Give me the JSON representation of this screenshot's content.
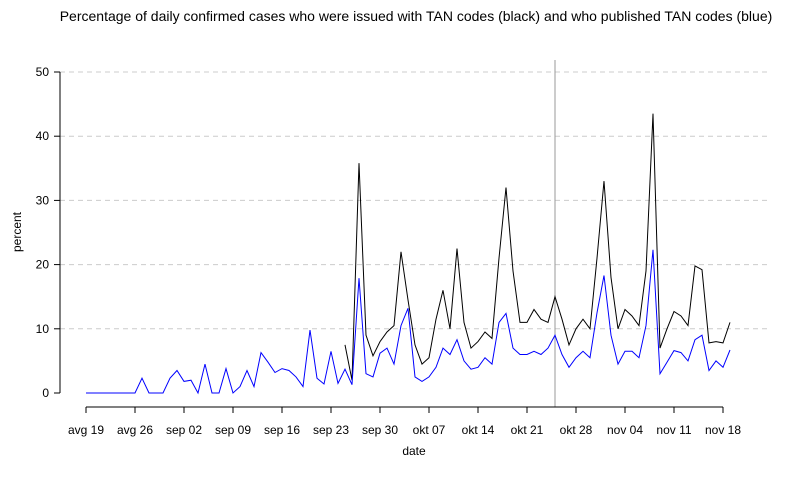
{
  "chart_data": {
    "type": "line",
    "title": "Percentage of daily confirmed cases who were issued with TAN codes (black) and who published TAN codes (blue)",
    "xlabel": "date",
    "ylabel": "percent",
    "ylim": [
      0,
      50
    ],
    "yticks": [
      0,
      10,
      20,
      30,
      40,
      50
    ],
    "xticks": [
      {
        "label": "avg 19",
        "day": 0
      },
      {
        "label": "avg 26",
        "day": 7
      },
      {
        "label": "sep 02",
        "day": 14
      },
      {
        "label": "sep 09",
        "day": 21
      },
      {
        "label": "sep 16",
        "day": 28
      },
      {
        "label": "sep 23",
        "day": 35
      },
      {
        "label": "sep 30",
        "day": 42
      },
      {
        "label": "okt 07",
        "day": 49
      },
      {
        "label": "okt 14",
        "day": 56
      },
      {
        "label": "okt 21",
        "day": 63
      },
      {
        "label": "okt 28",
        "day": 70
      },
      {
        "label": "nov 04",
        "day": 77
      },
      {
        "label": "nov 11",
        "day": 84
      },
      {
        "label": "nov 18",
        "day": 91
      }
    ],
    "grid": "horizontal dashed",
    "vline_day": 67,
    "series": [
      {
        "color": "#000000",
        "start_day": 37,
        "values": [
          7.5,
          2,
          35.8,
          9,
          5.8,
          8,
          9.5,
          10.5,
          22,
          14.5,
          7.5,
          4.5,
          5.5,
          11.5,
          16,
          10,
          22.5,
          11,
          7,
          8,
          9.5,
          8.5,
          21,
          32,
          19,
          11,
          11,
          13,
          11.5,
          11,
          15,
          11.5,
          7.5,
          10,
          11.5,
          10,
          21,
          33,
          18,
          10,
          13,
          12,
          10.5,
          19,
          43.5,
          7,
          10,
          12.7,
          12,
          10.5,
          19.8,
          19.2,
          7.8,
          8,
          7.8,
          11
        ]
      },
      {
        "color": "#0000ff",
        "start_day": 0,
        "values": [
          0,
          0,
          0,
          0,
          0,
          0,
          0,
          0,
          2.3,
          0,
          0,
          0,
          2.3,
          3.5,
          1.8,
          2,
          0,
          4.5,
          0,
          0,
          3.8,
          0,
          1,
          3.5,
          1,
          6.3,
          4.8,
          3.2,
          3.8,
          3.5,
          2.5,
          1,
          9.8,
          2.3,
          1.4,
          6.5,
          1.5,
          3.7,
          1.3,
          17.9,
          3,
          2.5,
          6.2,
          7,
          4.5,
          10.5,
          13.2,
          2.5,
          1.8,
          2.5,
          4,
          7,
          6,
          8.3,
          5,
          3.7,
          4,
          5.5,
          4.5,
          11,
          12.4,
          7,
          6,
          6,
          6.5,
          6,
          7,
          9,
          6,
          4,
          5.5,
          6.5,
          5.5,
          12.5,
          18.3,
          9,
          4.5,
          6.5,
          6.5,
          5.5,
          10.5,
          22.3,
          3,
          4.8,
          6.6,
          6.3,
          5,
          8.3,
          9,
          3.5,
          5,
          4,
          6.7
        ]
      }
    ]
  }
}
